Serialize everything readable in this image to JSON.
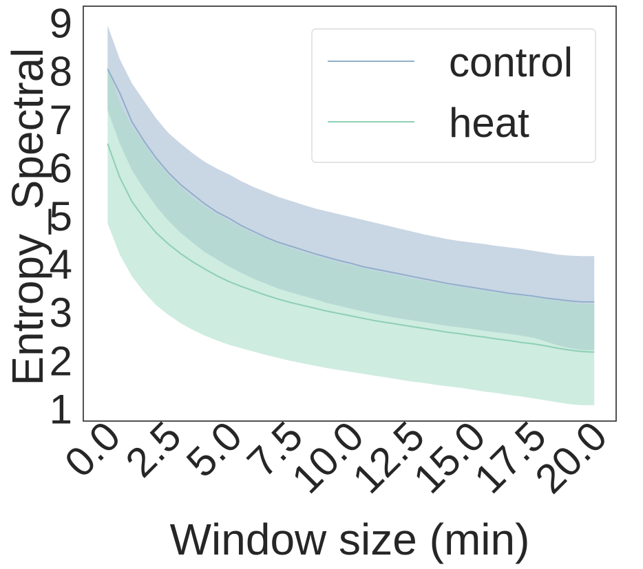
{
  "chart_data": {
    "type": "line",
    "xlabel": "Window size (min)",
    "ylabel": "Entropy_Spectral",
    "xlim": [
      -1.0,
      20.9
    ],
    "ylim": [
      0.75,
      9.35
    ],
    "xticks": [
      "0.0",
      "2.5",
      "5.0",
      "7.5",
      "10.0",
      "12.5",
      "15.0",
      "17.5",
      "20.0"
    ],
    "yticks": [
      "1",
      "2",
      "3",
      "4",
      "5",
      "6",
      "7",
      "8",
      "9"
    ],
    "grid": false,
    "legend_position": "top-right",
    "x": [
      0.0,
      0.5,
      1.0,
      1.5,
      2.0,
      2.5,
      3.0,
      3.5,
      4.0,
      4.5,
      5.0,
      5.5,
      6.0,
      6.5,
      7.0,
      7.5,
      8.0,
      8.5,
      9.0,
      9.5,
      10.0,
      10.5,
      11.0,
      11.5,
      12.0,
      12.5,
      13.0,
      13.5,
      14.0,
      14.5,
      15.0,
      15.5,
      16.0,
      16.5,
      17.0,
      17.5,
      18.0,
      18.5,
      19.0,
      19.5,
      20.0
    ],
    "series": [
      {
        "name": "control",
        "color": "#8fafc9",
        "band_color": "#b4c6da",
        "values": [
          8.05,
          7.55,
          6.95,
          6.55,
          6.2,
          5.9,
          5.65,
          5.45,
          5.25,
          5.08,
          4.95,
          4.8,
          4.68,
          4.56,
          4.46,
          4.38,
          4.3,
          4.22,
          4.15,
          4.08,
          4.02,
          3.95,
          3.9,
          3.85,
          3.8,
          3.75,
          3.7,
          3.65,
          3.6,
          3.56,
          3.52,
          3.48,
          3.44,
          3.4,
          3.37,
          3.34,
          3.3,
          3.27,
          3.24,
          3.22,
          3.22
        ],
        "lower": [
          7.2,
          6.5,
          5.95,
          5.55,
          5.2,
          4.9,
          4.65,
          4.45,
          4.25,
          4.1,
          3.95,
          3.82,
          3.7,
          3.6,
          3.5,
          3.42,
          3.35,
          3.28,
          3.2,
          3.14,
          3.08,
          3.02,
          2.97,
          2.92,
          2.88,
          2.84,
          2.8,
          2.76,
          2.72,
          2.69,
          2.66,
          2.62,
          2.59,
          2.56,
          2.52,
          2.48,
          2.4,
          2.32,
          2.26,
          2.22,
          2.22
        ],
        "upper": [
          8.95,
          8.25,
          7.75,
          7.38,
          7.02,
          6.72,
          6.5,
          6.3,
          6.12,
          5.98,
          5.86,
          5.72,
          5.6,
          5.5,
          5.4,
          5.32,
          5.24,
          5.16,
          5.1,
          5.04,
          4.98,
          4.92,
          4.86,
          4.8,
          4.74,
          4.68,
          4.62,
          4.57,
          4.52,
          4.48,
          4.45,
          4.42,
          4.38,
          4.35,
          4.32,
          4.28,
          4.24,
          4.2,
          4.18,
          4.17,
          4.17
        ]
      },
      {
        "name": "heat",
        "color": "#8ecfb5",
        "band_color": "#a6dcc6",
        "values": [
          6.5,
          5.8,
          5.3,
          4.95,
          4.65,
          4.42,
          4.22,
          4.05,
          3.9,
          3.76,
          3.64,
          3.54,
          3.45,
          3.36,
          3.28,
          3.21,
          3.15,
          3.09,
          3.03,
          2.98,
          2.93,
          2.88,
          2.83,
          2.79,
          2.75,
          2.71,
          2.67,
          2.63,
          2.59,
          2.56,
          2.52,
          2.49,
          2.45,
          2.42,
          2.38,
          2.35,
          2.31,
          2.26,
          2.22,
          2.19,
          2.18
        ],
        "lower": [
          4.85,
          4.2,
          3.75,
          3.42,
          3.15,
          2.95,
          2.78,
          2.64,
          2.52,
          2.42,
          2.33,
          2.26,
          2.19,
          2.12,
          2.06,
          2.0,
          1.95,
          1.9,
          1.85,
          1.81,
          1.77,
          1.73,
          1.69,
          1.65,
          1.61,
          1.57,
          1.54,
          1.5,
          1.47,
          1.44,
          1.4,
          1.36,
          1.33,
          1.29,
          1.26,
          1.22,
          1.18,
          1.14,
          1.1,
          1.08,
          1.08
        ],
        "upper": [
          8.1,
          7.35,
          6.85,
          6.5,
          6.15,
          5.85,
          5.6,
          5.38,
          5.2,
          5.04,
          4.9,
          4.76,
          4.64,
          4.53,
          4.43,
          4.34,
          4.26,
          4.18,
          4.11,
          4.04,
          3.98,
          3.92,
          3.86,
          3.81,
          3.76,
          3.71,
          3.66,
          3.62,
          3.57,
          3.53,
          3.49,
          3.45,
          3.41,
          3.38,
          3.34,
          3.31,
          3.27,
          3.24,
          3.21,
          3.18,
          3.18
        ]
      }
    ]
  }
}
